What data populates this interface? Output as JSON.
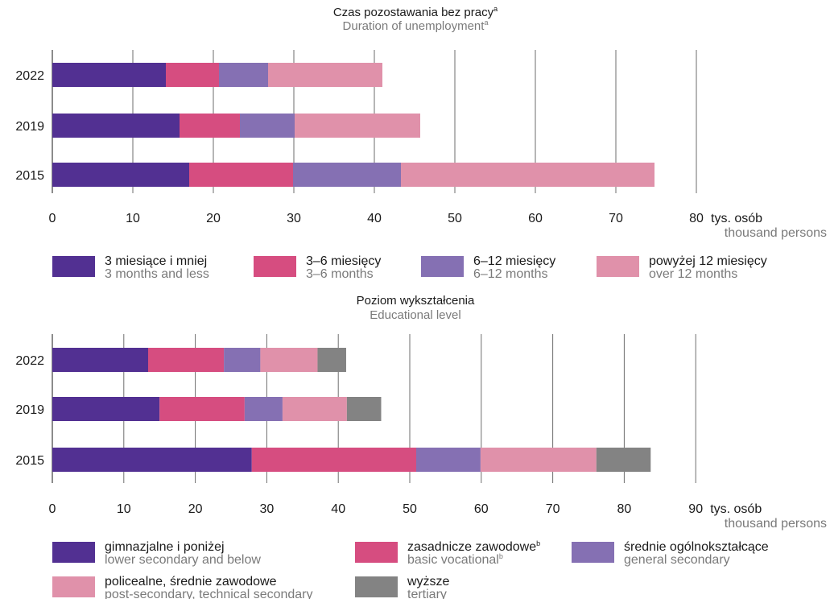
{
  "colors": {
    "purple": "#523092",
    "magenta": "#d64d80",
    "lavender": "#8570b3",
    "pink": "#e091aa",
    "gray": "#838383",
    "grid": "#6e6e6e"
  },
  "chart_data": [
    {
      "type": "bar",
      "orientation": "horizontal",
      "stacked": true,
      "title": "Czas pozostawania bez pracy",
      "title_sup": "a",
      "subtitle": "Duration of unemployment",
      "subtitle_sup": "a",
      "categories": [
        "2022",
        "2019",
        "2015"
      ],
      "series": [
        {
          "name": "3 miesiące i mniej",
          "name_en": "3 months and less",
          "color": "#523092",
          "values": [
            14.1,
            15.8,
            17.0
          ]
        },
        {
          "name": "3–6 miesięcy",
          "name_en": "3–6 months",
          "color": "#d64d80",
          "values": [
            6.6,
            7.5,
            12.9
          ]
        },
        {
          "name": "6–12 miesięcy",
          "name_en": "6–12 months",
          "color": "#8570b3",
          "values": [
            6.1,
            6.8,
            13.4
          ]
        },
        {
          "name": "powyżej 12 miesięcy",
          "name_en": "over 12 months",
          "color": "#e091aa",
          "values": [
            14.2,
            15.6,
            31.5
          ]
        }
      ],
      "xlim": [
        0,
        80
      ],
      "xticks": [
        "0",
        "10",
        "20",
        "30",
        "40",
        "50",
        "60",
        "70",
        "80"
      ],
      "unit": "tys. osób",
      "unit_en": "thousand persons",
      "grid": true,
      "legend_position": "bottom"
    },
    {
      "type": "bar",
      "orientation": "horizontal",
      "stacked": true,
      "title": "Poziom wykształcenia",
      "subtitle": "Educational level",
      "categories": [
        "2022",
        "2019",
        "2015"
      ],
      "series": [
        {
          "name": "gimnazjalne i poniżej",
          "name_en": "lower secondary and below",
          "color": "#523092",
          "values": [
            13.4,
            15.0,
            27.9
          ]
        },
        {
          "name": "zasadnicze zawodowe",
          "name_sup": "b",
          "name_en": "basic vocational",
          "name_en_sup": "b",
          "color": "#d64d80",
          "values": [
            10.6,
            11.9,
            23.0
          ]
        },
        {
          "name": "średnie ogólnokształcące",
          "name_en": "general secondary",
          "color": "#8570b3",
          "values": [
            5.1,
            5.3,
            9.0
          ]
        },
        {
          "name": "policealne, średnie zawodowe",
          "name_en": "post-secondary, technical secondary",
          "color": "#e091aa",
          "values": [
            8.0,
            9.0,
            16.2
          ]
        },
        {
          "name": "wyższe",
          "name_en": "tertiary",
          "color": "#838383",
          "values": [
            4.0,
            4.8,
            7.6
          ]
        }
      ],
      "xlim": [
        0,
        90
      ],
      "xticks": [
        "0",
        "10",
        "20",
        "30",
        "40",
        "50",
        "60",
        "70",
        "80",
        "90"
      ],
      "unit": "tys. osób",
      "unit_en": "thousand persons",
      "grid": true,
      "legend_position": "bottom"
    }
  ]
}
